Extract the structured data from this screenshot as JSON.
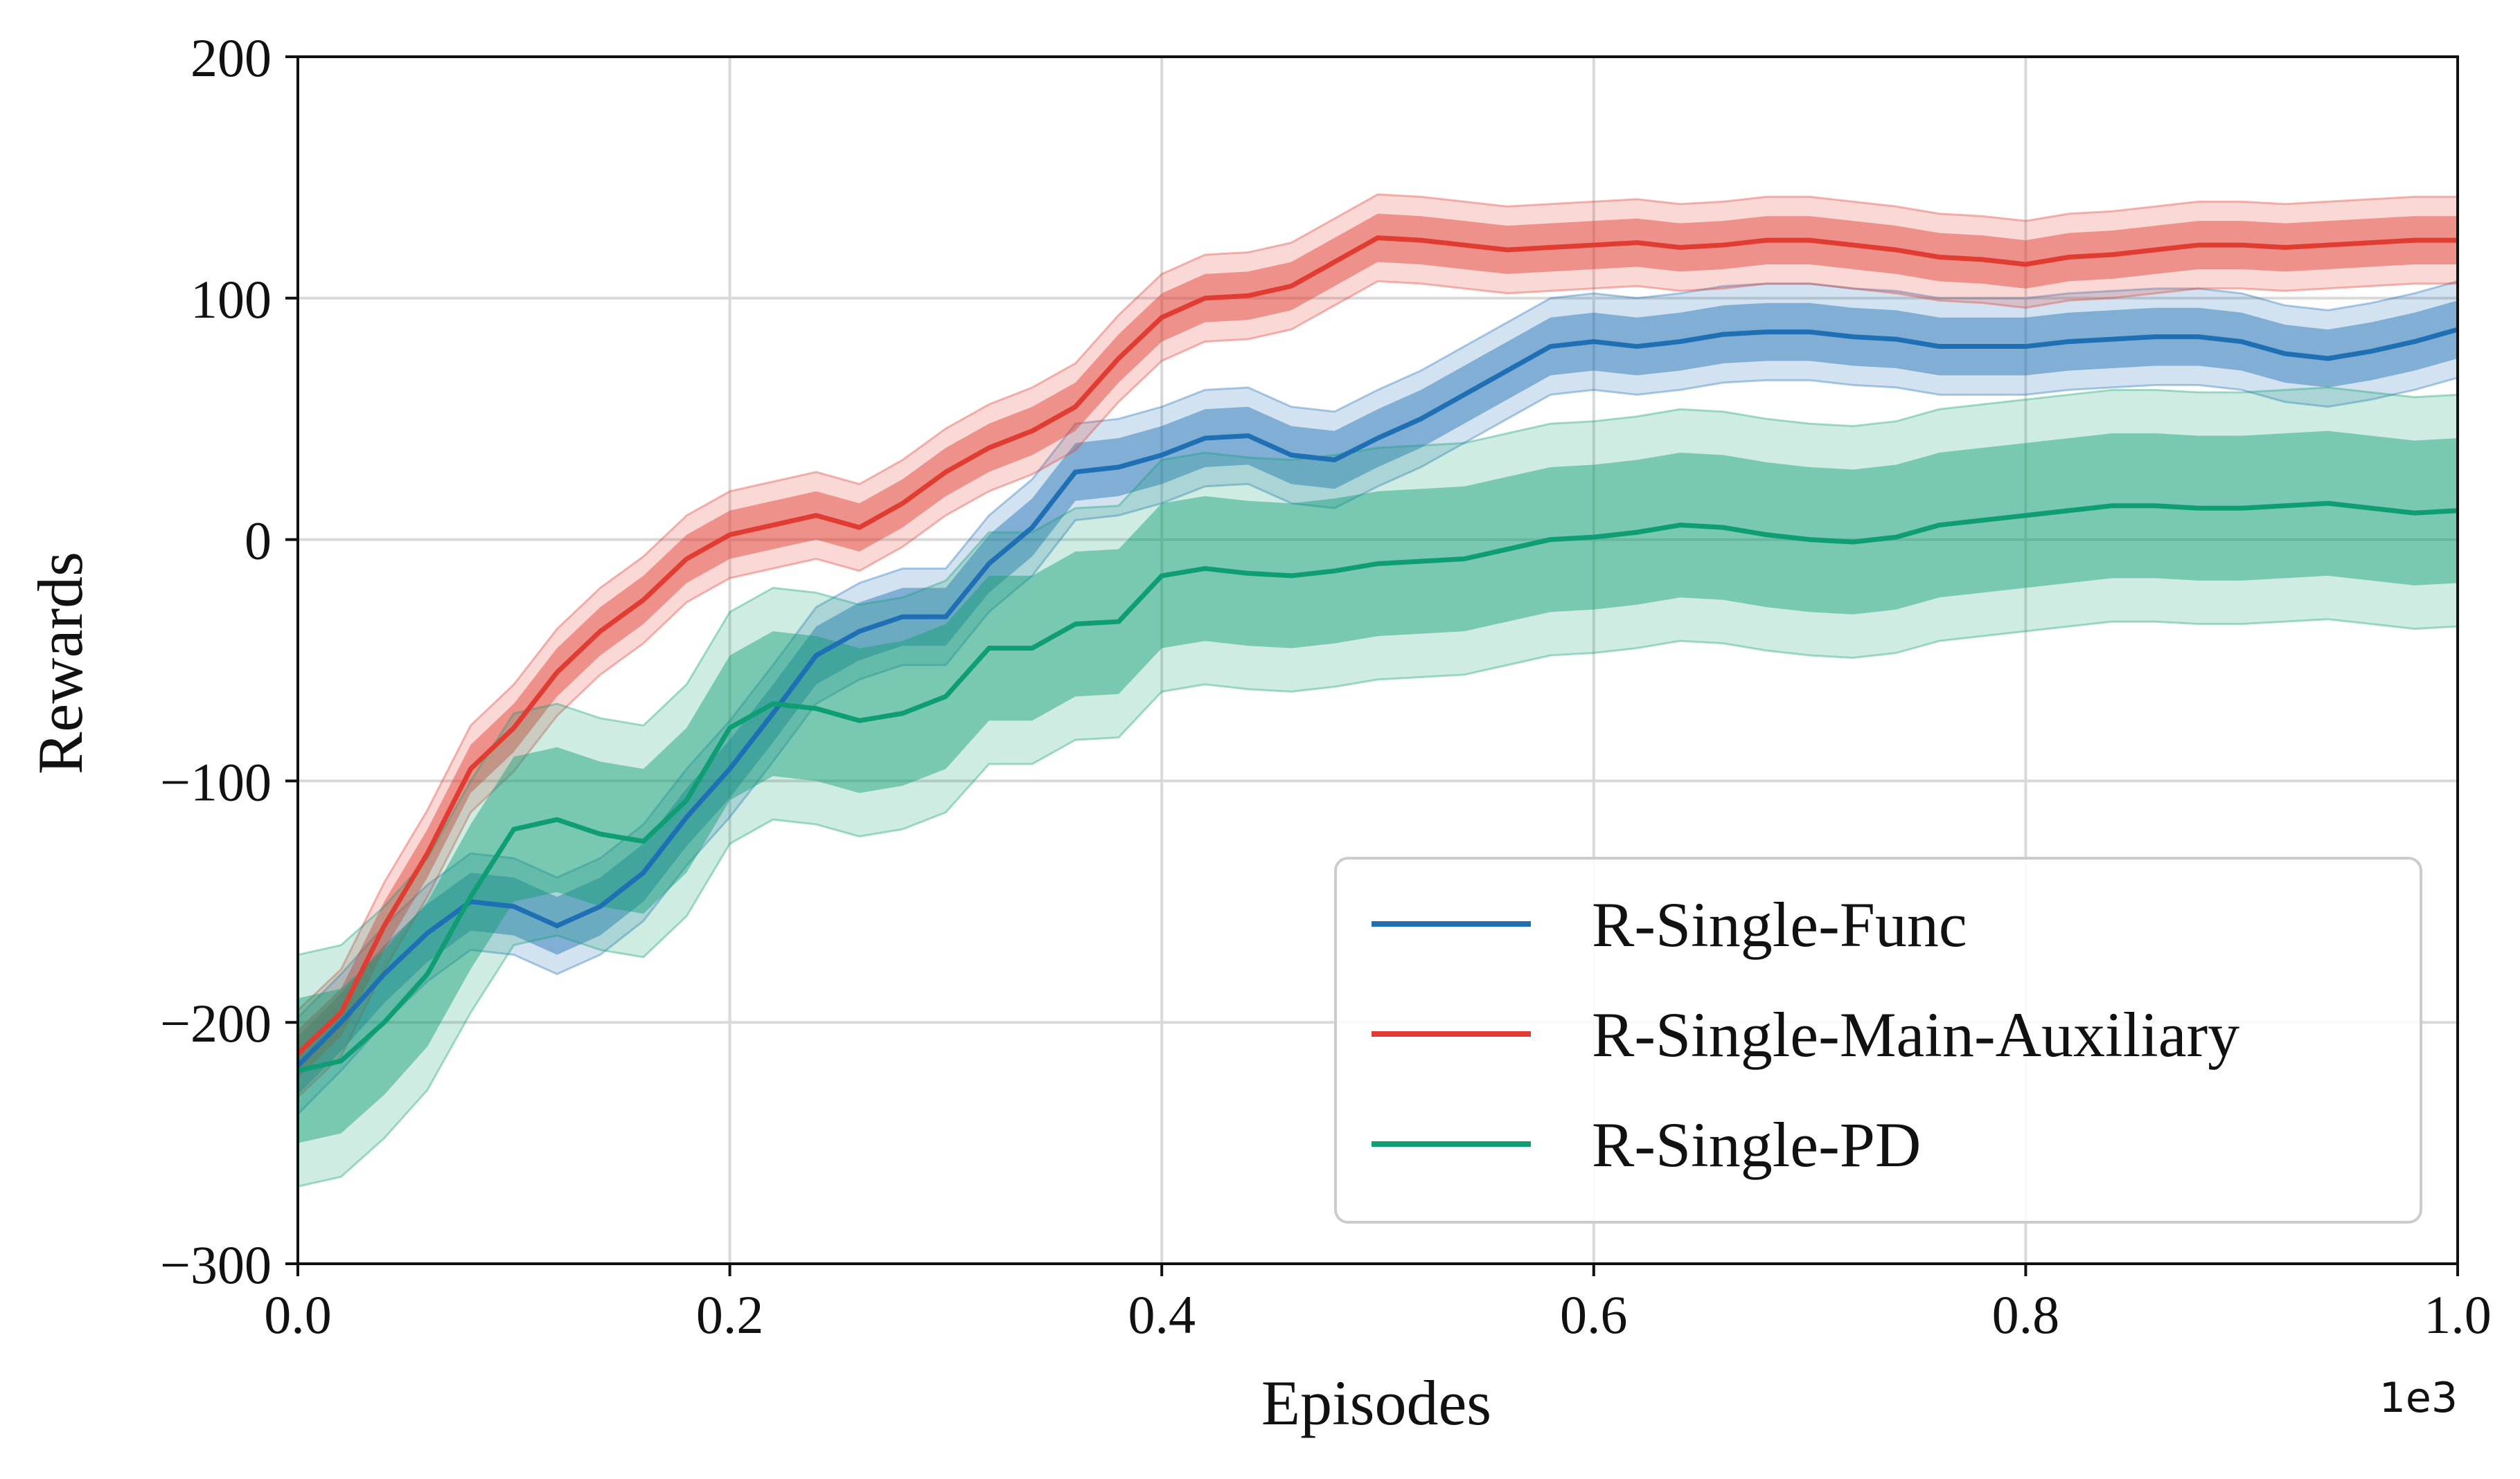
{
  "chart_data": {
    "type": "line",
    "xlabel": "Episodes",
    "ylabel": "Rewards",
    "x_multiplier_label": "1e3",
    "xlim": [
      0.0,
      1.0
    ],
    "ylim": [
      -300,
      200
    ],
    "xticks": [
      "0.0",
      "0.2",
      "0.4",
      "0.6",
      "0.8",
      "1.0"
    ],
    "yticks": [
      "−300",
      "−200",
      "−100",
      "0",
      "100",
      "200"
    ],
    "xtick_values": [
      0.0,
      0.2,
      0.4,
      0.6,
      0.8,
      1.0
    ],
    "ytick_values": [
      -300,
      -200,
      -100,
      0,
      100,
      200
    ],
    "grid": true,
    "legend_position": "lower-right",
    "series": [
      {
        "name": "R-Single-Func",
        "color": "#1f6fb4",
        "x": [
          0.0,
          0.02,
          0.04,
          0.06,
          0.08,
          0.1,
          0.12,
          0.14,
          0.16,
          0.18,
          0.2,
          0.22,
          0.24,
          0.26,
          0.28,
          0.3,
          0.32,
          0.34,
          0.36,
          0.38,
          0.4,
          0.42,
          0.44,
          0.46,
          0.48,
          0.5,
          0.52,
          0.54,
          0.56,
          0.58,
          0.6,
          0.62,
          0.64,
          0.66,
          0.68,
          0.7,
          0.72,
          0.74,
          0.76,
          0.78,
          0.8,
          0.82,
          0.84,
          0.86,
          0.88,
          0.9,
          0.92,
          0.94,
          0.96,
          0.98,
          1.0
        ],
        "y": [
          -218,
          -200,
          -180,
          -163,
          -150,
          -152,
          -160,
          -152,
          -138,
          -115,
          -95,
          -72,
          -48,
          -38,
          -32,
          -32,
          -10,
          5,
          28,
          30,
          35,
          42,
          43,
          35,
          33,
          42,
          50,
          60,
          70,
          80,
          82,
          80,
          82,
          85,
          86,
          86,
          84,
          83,
          80,
          80,
          80,
          82,
          83,
          84,
          84,
          82,
          77,
          75,
          78,
          82,
          87
        ],
        "band_inner": 12,
        "band_outer": 20
      },
      {
        "name": "R-Single-Main-Auxiliary",
        "color": "#e03c31",
        "x": [
          0.0,
          0.02,
          0.04,
          0.06,
          0.08,
          0.1,
          0.12,
          0.14,
          0.16,
          0.18,
          0.2,
          0.22,
          0.24,
          0.26,
          0.28,
          0.3,
          0.32,
          0.34,
          0.36,
          0.38,
          0.4,
          0.42,
          0.44,
          0.46,
          0.48,
          0.5,
          0.52,
          0.54,
          0.56,
          0.58,
          0.6,
          0.62,
          0.64,
          0.66,
          0.68,
          0.7,
          0.72,
          0.74,
          0.76,
          0.78,
          0.8,
          0.82,
          0.84,
          0.86,
          0.88,
          0.9,
          0.92,
          0.94,
          0.96,
          0.98,
          1.0
        ],
        "y": [
          -213,
          -196,
          -160,
          -130,
          -95,
          -78,
          -55,
          -38,
          -25,
          -8,
          2,
          6,
          10,
          5,
          15,
          28,
          38,
          45,
          55,
          75,
          92,
          100,
          101,
          105,
          115,
          125,
          124,
          122,
          120,
          121,
          122,
          123,
          121,
          122,
          124,
          124,
          122,
          120,
          117,
          116,
          114,
          117,
          118,
          120,
          122,
          122,
          121,
          122,
          123,
          124,
          124
        ],
        "band_inner": 10,
        "band_outer": 18
      },
      {
        "name": "R-Single-PD",
        "color": "#0f9e73",
        "x": [
          0.0,
          0.02,
          0.04,
          0.06,
          0.08,
          0.1,
          0.12,
          0.14,
          0.16,
          0.18,
          0.2,
          0.22,
          0.24,
          0.26,
          0.28,
          0.3,
          0.32,
          0.34,
          0.36,
          0.38,
          0.4,
          0.42,
          0.44,
          0.46,
          0.48,
          0.5,
          0.52,
          0.54,
          0.56,
          0.58,
          0.6,
          0.62,
          0.64,
          0.66,
          0.68,
          0.7,
          0.72,
          0.74,
          0.76,
          0.78,
          0.8,
          0.82,
          0.84,
          0.86,
          0.88,
          0.9,
          0.92,
          0.94,
          0.96,
          0.98,
          1.0
        ],
        "y": [
          -220,
          -216,
          -200,
          -180,
          -148,
          -120,
          -116,
          -122,
          -125,
          -108,
          -78,
          -68,
          -70,
          -75,
          -72,
          -65,
          -45,
          -45,
          -35,
          -34,
          -15,
          -12,
          -14,
          -15,
          -13,
          -10,
          -9,
          -8,
          -4,
          0,
          1,
          3,
          6,
          5,
          2,
          0,
          -1,
          1,
          6,
          8,
          10,
          12,
          14,
          14,
          13,
          13,
          14,
          15,
          13,
          11,
          12
        ],
        "band_inner_upper": 30,
        "band_inner_lower": 30,
        "band_outer": 48
      }
    ]
  }
}
